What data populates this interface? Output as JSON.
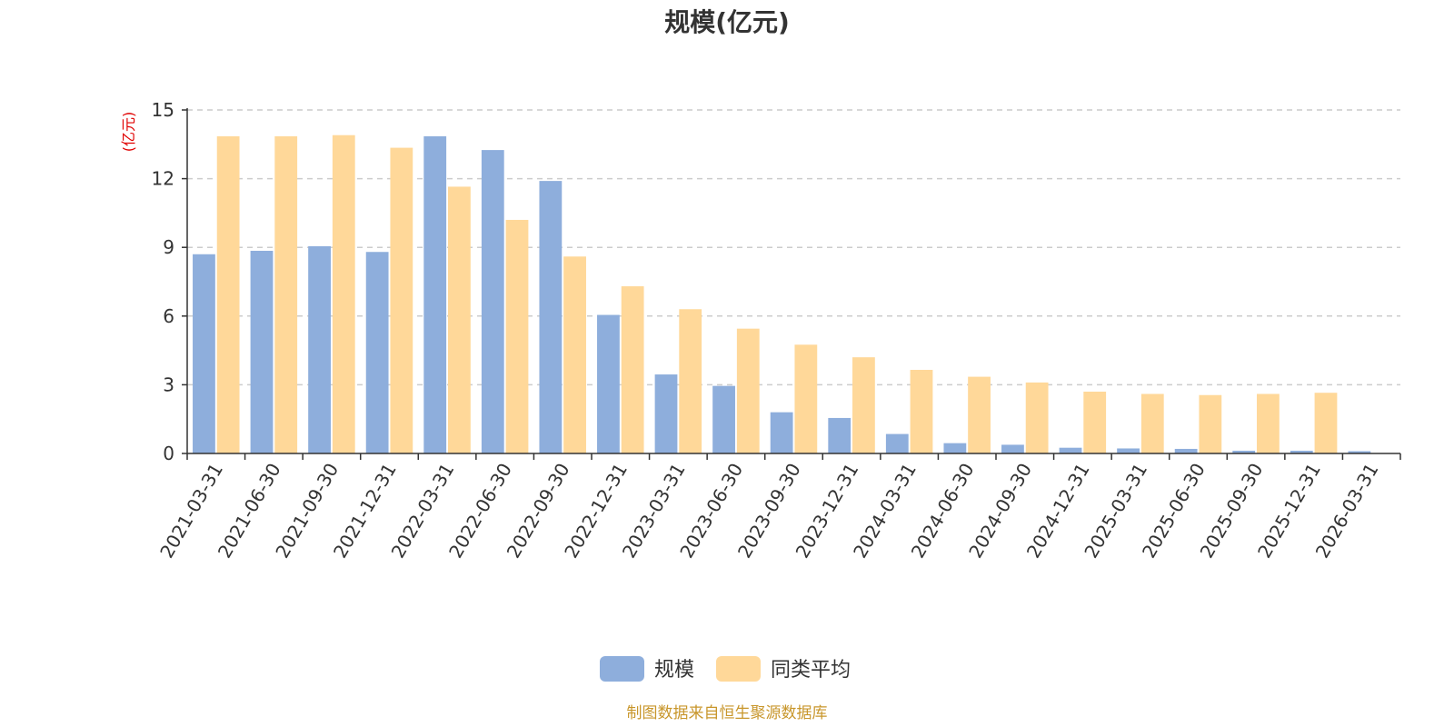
{
  "chart_data": {
    "type": "bar",
    "title": "规模(亿元)",
    "ylabel": "(亿元)",
    "xlabel": "",
    "ylim": [
      0,
      15
    ],
    "yticks": [
      0,
      3,
      6,
      9,
      12,
      15
    ],
    "grid": true,
    "legend_position": "bottom-center",
    "categories": [
      "2021-03-31",
      "2021-06-30",
      "2021-09-30",
      "2021-12-31",
      "2022-03-31",
      "2022-06-30",
      "2022-09-30",
      "2022-12-31",
      "2023-03-31",
      "2023-06-30",
      "2023-09-30",
      "2023-12-31",
      "2024-03-31",
      "2024-06-30",
      "2024-09-30",
      "2024-12-31",
      "2025-03-31",
      "2025-06-30",
      "2025-09-30",
      "2025-12-31",
      "2026-03-31"
    ],
    "series": [
      {
        "name": "规模",
        "color": "#8eaedc",
        "values": [
          8.7,
          8.85,
          9.05,
          8.8,
          13.85,
          13.25,
          11.9,
          6.05,
          3.45,
          2.95,
          1.8,
          1.55,
          0.85,
          0.45,
          0.38,
          0.25,
          0.22,
          0.2,
          0.12,
          0.12,
          0.1
        ]
      },
      {
        "name": "同类平均",
        "color": "#ffd899",
        "values": [
          13.85,
          13.85,
          13.9,
          13.35,
          11.65,
          10.2,
          8.6,
          7.3,
          6.3,
          5.45,
          4.75,
          4.2,
          3.65,
          3.35,
          3.1,
          2.7,
          2.6,
          2.55,
          2.6,
          2.65,
          null
        ]
      }
    ]
  },
  "legend": {
    "items": [
      {
        "label": "规模",
        "color": "#8eaedc"
      },
      {
        "label": "同类平均",
        "color": "#ffd899"
      }
    ]
  },
  "footer": {
    "source": "制图数据来自恒生聚源数据库"
  }
}
